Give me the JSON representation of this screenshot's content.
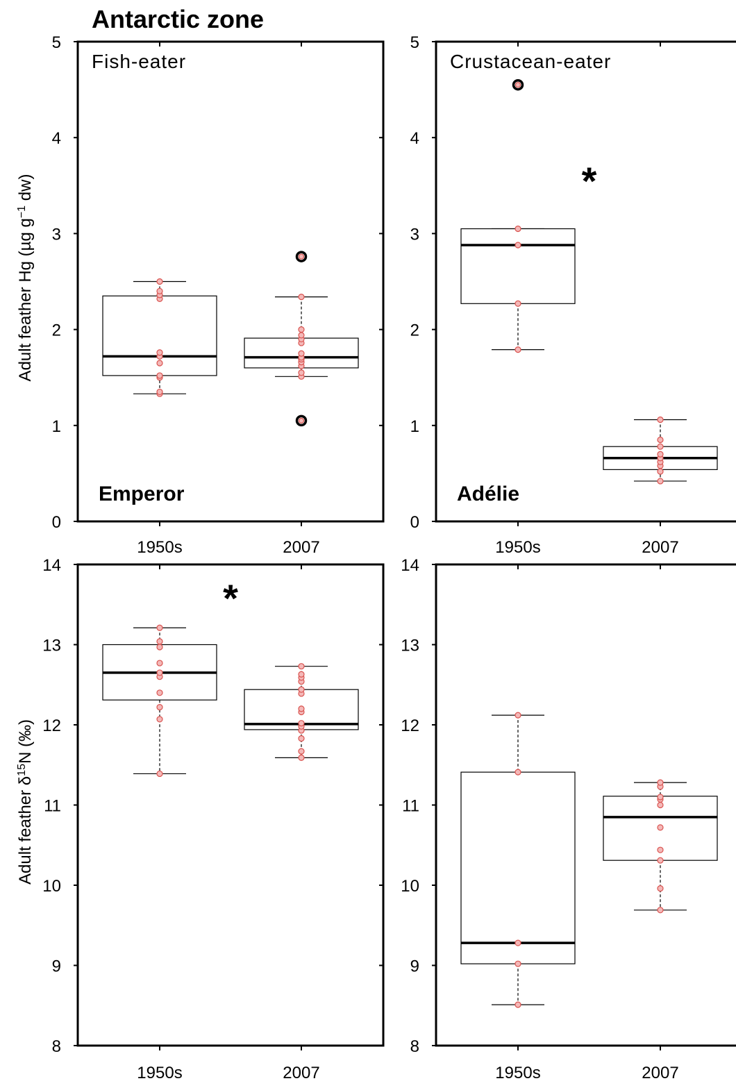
{
  "figure_title": "Antarctic zone",
  "ylabels": {
    "hg": [
      "Adult feather Hg (µg g",
      "−1",
      " dw)"
    ],
    "n15": [
      "Adult feather δ",
      "15",
      "N (‰)"
    ]
  },
  "colors": {
    "point_fill": "#f4b8b8",
    "point_stroke": "#d9534f"
  },
  "chart_data": [
    {
      "type": "box",
      "row": "hg",
      "col": 0,
      "group_label": "Fish-eater",
      "species": "Emperor",
      "categories": [
        "1950s",
        "2007"
      ],
      "ylim": [
        0,
        5
      ],
      "yticks": [
        0,
        1,
        2,
        3,
        4,
        5
      ],
      "significant": false,
      "boxes": [
        {
          "q1": 1.52,
          "median": 1.72,
          "q3": 2.35,
          "whisker_low": 1.33,
          "whisker_high": 2.5,
          "points": [
            1.33,
            1.35,
            1.5,
            1.52,
            1.65,
            1.72,
            1.76,
            2.32,
            2.36,
            2.4,
            2.5
          ],
          "outliers": []
        },
        {
          "q1": 1.6,
          "median": 1.71,
          "q3": 1.91,
          "whisker_low": 1.51,
          "whisker_high": 2.34,
          "points": [
            1.51,
            1.55,
            1.62,
            1.66,
            1.69,
            1.71,
            1.75,
            1.86,
            1.9,
            1.94,
            2.0,
            2.34
          ],
          "outliers": [
            1.05,
            2.76
          ]
        }
      ]
    },
    {
      "type": "box",
      "row": "hg",
      "col": 1,
      "group_label": "Crustacean-eater",
      "species": "Adélie",
      "categories": [
        "1950s",
        "2007"
      ],
      "ylim": [
        0,
        5
      ],
      "yticks": [
        0,
        1,
        2,
        3,
        4,
        5
      ],
      "significant": true,
      "sig_mark": "*",
      "boxes": [
        {
          "q1": 2.27,
          "median": 2.88,
          "q3": 3.05,
          "whisker_low": 1.79,
          "whisker_high": 3.05,
          "points": [
            1.79,
            2.27,
            2.88,
            3.05
          ],
          "outliers": [
            4.55
          ]
        },
        {
          "q1": 0.54,
          "median": 0.66,
          "q3": 0.78,
          "whisker_low": 0.42,
          "whisker_high": 1.06,
          "points": [
            0.42,
            0.52,
            0.58,
            0.62,
            0.66,
            0.7,
            0.78,
            0.85,
            1.06
          ],
          "outliers": []
        }
      ]
    },
    {
      "type": "box",
      "row": "n15",
      "col": 0,
      "group_label": "",
      "species": "",
      "categories": [
        "1950s",
        "2007"
      ],
      "ylim": [
        8,
        14
      ],
      "yticks": [
        8,
        9,
        10,
        11,
        12,
        13,
        14
      ],
      "significant": true,
      "sig_mark": "*",
      "boxes": [
        {
          "q1": 12.31,
          "median": 12.65,
          "q3": 13.0,
          "whisker_low": 11.39,
          "whisker_high": 13.21,
          "points": [
            11.39,
            12.07,
            12.22,
            12.4,
            12.6,
            12.65,
            12.77,
            12.97,
            13.04,
            13.21
          ],
          "outliers": []
        },
        {
          "q1": 11.94,
          "median": 12.01,
          "q3": 12.44,
          "whisker_low": 11.59,
          "whisker_high": 12.73,
          "points": [
            11.59,
            11.67,
            11.83,
            11.93,
            11.98,
            12.02,
            12.16,
            12.2,
            12.39,
            12.44,
            12.54,
            12.59,
            12.63,
            12.73
          ],
          "outliers": []
        }
      ]
    },
    {
      "type": "box",
      "row": "n15",
      "col": 1,
      "group_label": "",
      "species": "",
      "categories": [
        "1950s",
        "2007"
      ],
      "ylim": [
        8,
        14
      ],
      "yticks": [
        8,
        9,
        10,
        11,
        12,
        13,
        14
      ],
      "significant": false,
      "boxes": [
        {
          "q1": 9.02,
          "median": 9.28,
          "q3": 11.41,
          "whisker_low": 8.51,
          "whisker_high": 12.12,
          "points": [
            8.51,
            9.02,
            9.28,
            11.41,
            12.12
          ],
          "outliers": []
        },
        {
          "q1": 10.31,
          "median": 10.85,
          "q3": 11.11,
          "whisker_low": 9.69,
          "whisker_high": 11.28,
          "points": [
            9.69,
            9.96,
            10.31,
            10.44,
            10.72,
            11.0,
            11.07,
            11.1,
            11.23,
            11.28
          ],
          "outliers": []
        }
      ]
    }
  ]
}
